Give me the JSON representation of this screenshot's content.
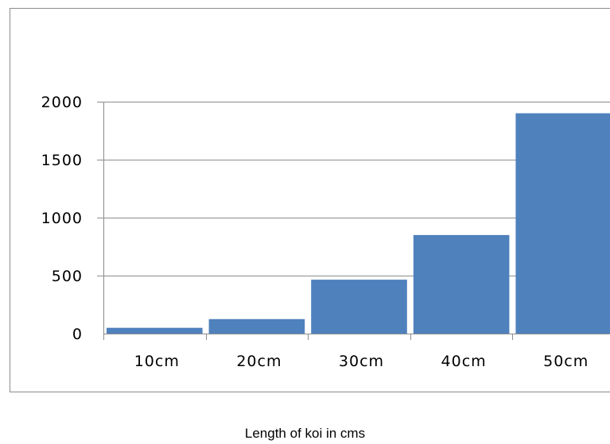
{
  "chart_data": {
    "type": "bar",
    "categories": [
      "10cm",
      "20cm",
      "30cm",
      "40cm",
      "50cm"
    ],
    "values": [
      50,
      125,
      465,
      850,
      1900
    ],
    "title": "",
    "xlabel": "Length of koi in cms",
    "ylabel": "",
    "ylim": [
      0,
      2000
    ],
    "yticks": [
      0,
      500,
      1000,
      1500,
      2000
    ],
    "grid": true,
    "legend": "none",
    "bar_color": "#4f81bd",
    "grid_color": "#8c8c8c",
    "frame_color": "#8c8c8c"
  }
}
